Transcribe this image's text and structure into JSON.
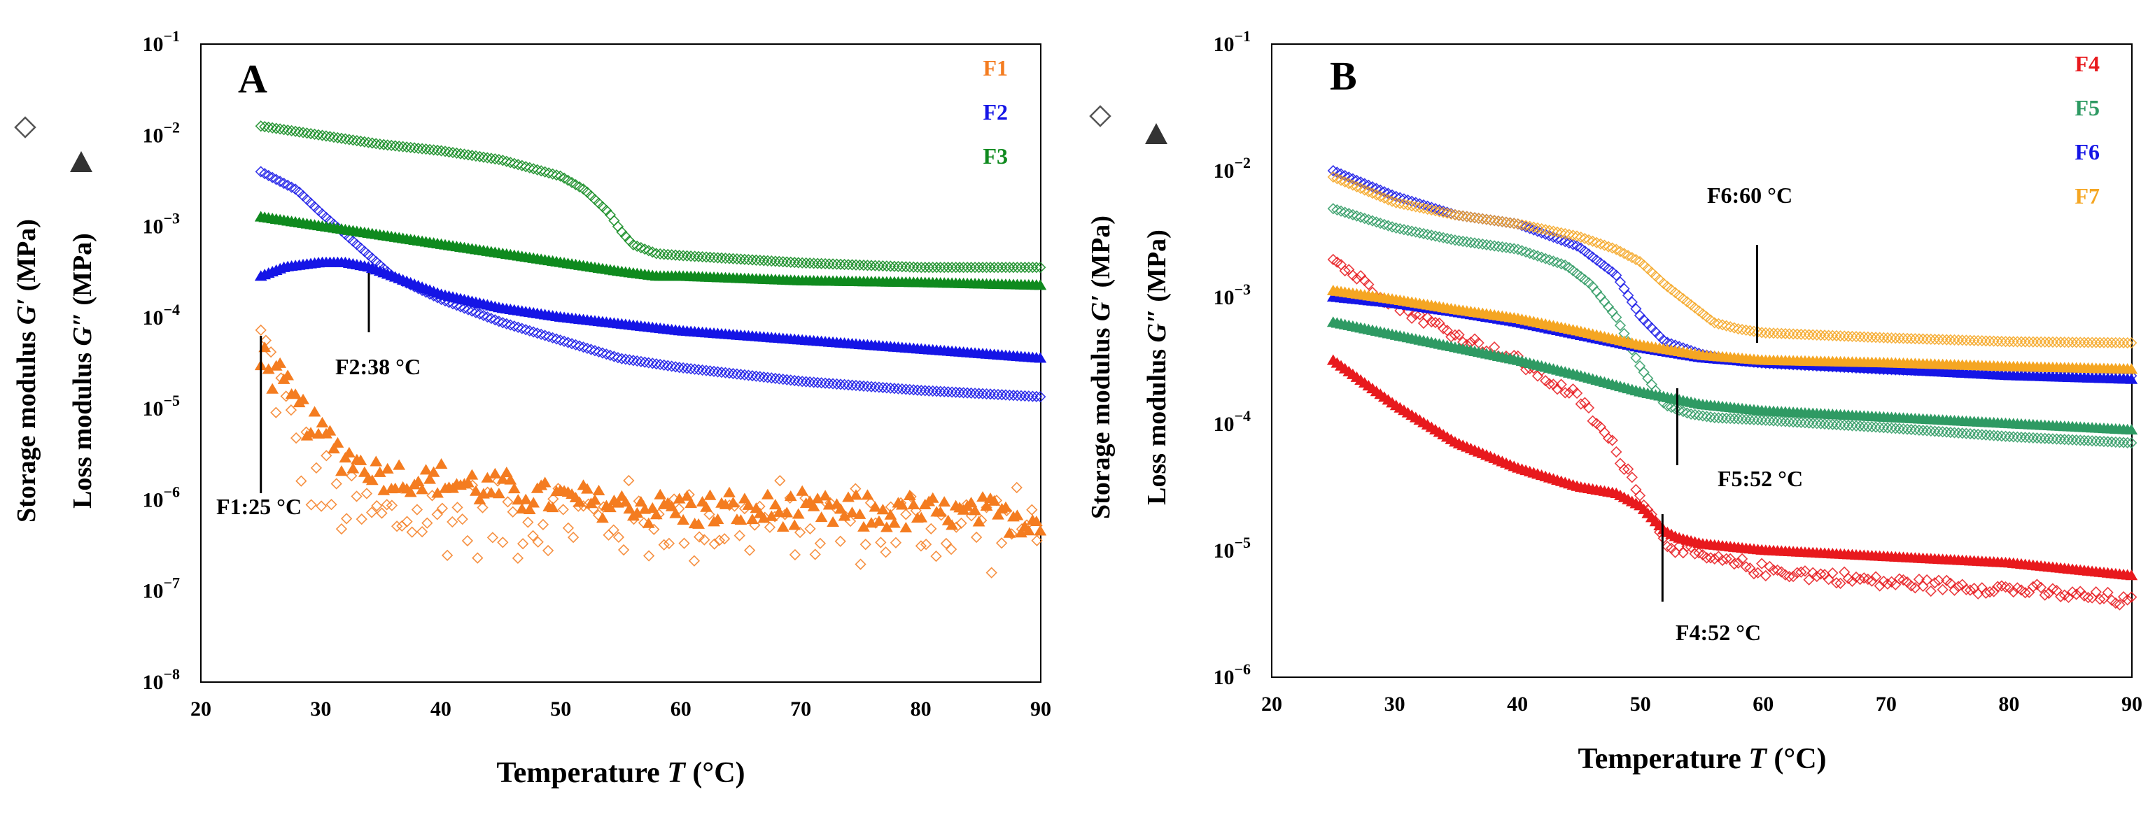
{
  "chart_data": [
    {
      "type": "scatter",
      "panel_label": "A",
      "xlabel": "Temperature",
      "xlabel_symbol": "T",
      "xlabel_unit": "(°C)",
      "ylabel_storage": "Storage modulus",
      "ylabel_storage_symbol": "G′",
      "ylabel_loss": "Loss modulus",
      "ylabel_loss_symbol": "G″",
      "ylabel_unit": "(MPa)",
      "xlim": [
        20,
        90
      ],
      "ylim_exp": [
        -8,
        -1
      ],
      "x_ticks": [
        20,
        30,
        40,
        50,
        60,
        70,
        80,
        90
      ],
      "y_ticks_exp": [
        -8,
        -7,
        -6,
        -5,
        -4,
        -3,
        -2,
        -1
      ],
      "legend": [
        {
          "name": "F1",
          "color": "#f47c20"
        },
        {
          "name": "F2",
          "color": "#1515e6"
        },
        {
          "name": "F3",
          "color": "#0f8a1e"
        }
      ],
      "series": [
        {
          "name": "F1",
          "modulus": "storage",
          "marker": "diamond",
          "color": "#f47c20",
          "noise": 0.55,
          "x": [
            25,
            26,
            27,
            28,
            29,
            30,
            32,
            35,
            40,
            50,
            60,
            70,
            80,
            90
          ],
          "log10_y": [
            -4.25,
            -4.6,
            -5.0,
            -5.4,
            -5.7,
            -5.9,
            -6.1,
            -6.2,
            -6.2,
            -6.2,
            -6.25,
            -6.25,
            -6.3,
            -6.3
          ]
        },
        {
          "name": "F1",
          "modulus": "loss",
          "marker": "triangle",
          "color": "#f47c20",
          "noise": 0.25,
          "x": [
            25,
            27,
            30,
            33,
            36,
            40,
            45,
            50,
            60,
            70,
            80,
            90
          ],
          "log10_y": [
            -4.4,
            -4.8,
            -5.3,
            -5.6,
            -5.75,
            -5.8,
            -5.9,
            -6.0,
            -6.1,
            -6.15,
            -6.15,
            -6.2
          ]
        },
        {
          "name": "F2",
          "modulus": "storage",
          "marker": "diamond",
          "color": "#1515e6",
          "noise": 0,
          "x": [
            25,
            28,
            30,
            33,
            36,
            40,
            45,
            50,
            55,
            60,
            70,
            80,
            90
          ],
          "log10_y": [
            -2.4,
            -2.6,
            -2.85,
            -3.2,
            -3.55,
            -3.8,
            -4.05,
            -4.25,
            -4.45,
            -4.55,
            -4.7,
            -4.8,
            -4.87
          ]
        },
        {
          "name": "F2",
          "modulus": "loss",
          "marker": "triangle",
          "color": "#1515e6",
          "noise": 0,
          "x": [
            25,
            27,
            30,
            32,
            34,
            37,
            40,
            45,
            50,
            60,
            70,
            80,
            90
          ],
          "log10_y": [
            -3.55,
            -3.45,
            -3.4,
            -3.4,
            -3.45,
            -3.6,
            -3.75,
            -3.9,
            -4.0,
            -4.15,
            -4.25,
            -4.35,
            -4.45
          ]
        },
        {
          "name": "F3",
          "modulus": "storage",
          "marker": "diamond",
          "color": "#0f8a1e",
          "noise": 0,
          "x": [
            25,
            30,
            35,
            40,
            45,
            50,
            52,
            54,
            55,
            56,
            58,
            60,
            70,
            80,
            90
          ],
          "log10_y": [
            -1.9,
            -2.0,
            -2.1,
            -2.17,
            -2.27,
            -2.45,
            -2.6,
            -2.85,
            -3.05,
            -3.2,
            -3.3,
            -3.32,
            -3.4,
            -3.45,
            -3.45
          ]
        },
        {
          "name": "F3",
          "modulus": "loss",
          "marker": "triangle",
          "color": "#0f8a1e",
          "noise": 0,
          "x": [
            25,
            30,
            35,
            40,
            45,
            50,
            55,
            58,
            60,
            70,
            80,
            90
          ],
          "log10_y": [
            -2.9,
            -3.0,
            -3.1,
            -3.2,
            -3.3,
            -3.4,
            -3.5,
            -3.55,
            -3.55,
            -3.6,
            -3.62,
            -3.65
          ]
        }
      ],
      "annotations": [
        {
          "label": "F2:38 °C",
          "x": 34
        },
        {
          "label": "F1:25 °C",
          "x": 25
        }
      ]
    },
    {
      "type": "scatter",
      "panel_label": "B",
      "xlabel": "Temperature",
      "xlabel_symbol": "T",
      "xlabel_unit": "(°C)",
      "ylabel_storage": "Storage modulus",
      "ylabel_storage_symbol": "G′",
      "ylabel_loss": "Loss modulus",
      "ylabel_loss_symbol": "G″",
      "ylabel_unit": "(MPa)",
      "xlim": [
        20,
        90
      ],
      "ylim_exp": [
        -6,
        -1
      ],
      "x_ticks": [
        20,
        30,
        40,
        50,
        60,
        70,
        80,
        90
      ],
      "y_ticks_exp": [
        -6,
        -5,
        -4,
        -3,
        -2,
        -1
      ],
      "legend": [
        {
          "name": "F4",
          "color": "#e8191d"
        },
        {
          "name": "F5",
          "color": "#2e9a63"
        },
        {
          "name": "F6",
          "color": "#1515e6"
        },
        {
          "name": "F7",
          "color": "#f5a623"
        }
      ],
      "series": [
        {
          "name": "F4",
          "modulus": "storage",
          "marker": "diamond",
          "color": "#e8191d",
          "noise": 0.06,
          "x": [
            25,
            30,
            35,
            40,
            45,
            48,
            50,
            51,
            52,
            53,
            55,
            60,
            70,
            80,
            90
          ],
          "log10_y": [
            -2.7,
            -3.05,
            -3.3,
            -3.5,
            -3.8,
            -4.2,
            -4.55,
            -4.75,
            -4.9,
            -5.0,
            -5.05,
            -5.15,
            -5.25,
            -5.3,
            -5.4
          ]
        },
        {
          "name": "F4",
          "modulus": "loss",
          "marker": "triangle",
          "color": "#e8191d",
          "noise": 0,
          "x": [
            25,
            30,
            35,
            40,
            45,
            48,
            50,
            51,
            52,
            53,
            55,
            60,
            70,
            80,
            90
          ],
          "log10_y": [
            -3.5,
            -3.85,
            -4.15,
            -4.35,
            -4.5,
            -4.55,
            -4.65,
            -4.75,
            -4.85,
            -4.9,
            -4.95,
            -5.0,
            -5.05,
            -5.1,
            -5.2
          ]
        },
        {
          "name": "F5",
          "modulus": "storage",
          "marker": "diamond",
          "color": "#2e9a63",
          "noise": 0,
          "x": [
            25,
            30,
            35,
            40,
            44,
            46,
            48,
            50,
            52,
            54,
            56,
            60,
            70,
            80,
            90
          ],
          "log10_y": [
            -2.3,
            -2.45,
            -2.55,
            -2.62,
            -2.75,
            -2.9,
            -3.15,
            -3.55,
            -3.85,
            -3.92,
            -3.95,
            -3.97,
            -4.03,
            -4.1,
            -4.15
          ]
        },
        {
          "name": "F5",
          "modulus": "loss",
          "marker": "triangle",
          "color": "#2e9a63",
          "noise": 0,
          "x": [
            25,
            30,
            35,
            40,
            45,
            50,
            55,
            60,
            70,
            80,
            90
          ],
          "log10_y": [
            -3.2,
            -3.3,
            -3.4,
            -3.5,
            -3.62,
            -3.75,
            -3.85,
            -3.9,
            -3.95,
            -4.0,
            -4.05
          ]
        },
        {
          "name": "F6",
          "modulus": "storage",
          "marker": "diamond",
          "color": "#1515e6",
          "noise": 0,
          "x": [
            25,
            30,
            35,
            40,
            45,
            48,
            50,
            52,
            55,
            58,
            60,
            70,
            80,
            90
          ],
          "log10_y": [
            -2.0,
            -2.2,
            -2.35,
            -2.42,
            -2.6,
            -2.82,
            -3.15,
            -3.35,
            -3.45,
            -3.5,
            -3.52,
            -3.57,
            -3.6,
            -3.62
          ]
        },
        {
          "name": "F6",
          "modulus": "loss",
          "marker": "triangle",
          "color": "#1515e6",
          "noise": 0,
          "x": [
            25,
            30,
            35,
            40,
            45,
            50,
            55,
            60,
            70,
            80,
            90
          ],
          "log10_y": [
            -3.0,
            -3.05,
            -3.12,
            -3.2,
            -3.3,
            -3.4,
            -3.48,
            -3.52,
            -3.57,
            -3.62,
            -3.65
          ]
        },
        {
          "name": "F7",
          "modulus": "storage",
          "marker": "diamond",
          "color": "#f5a623",
          "noise": 0,
          "x": [
            25,
            30,
            35,
            40,
            45,
            48,
            50,
            52,
            54,
            56,
            58,
            60,
            70,
            80,
            90
          ],
          "log10_y": [
            -2.05,
            -2.25,
            -2.35,
            -2.42,
            -2.52,
            -2.62,
            -2.72,
            -2.9,
            -3.05,
            -3.2,
            -3.25,
            -3.28,
            -3.32,
            -3.35,
            -3.36
          ]
        },
        {
          "name": "F7",
          "modulus": "loss",
          "marker": "triangle",
          "color": "#f5a623",
          "noise": 0,
          "x": [
            25,
            30,
            35,
            40,
            45,
            50,
            55,
            60,
            70,
            80,
            90
          ],
          "log10_y": [
            -2.95,
            -3.02,
            -3.1,
            -3.17,
            -3.27,
            -3.38,
            -3.46,
            -3.5,
            -3.52,
            -3.55,
            -3.57
          ]
        }
      ],
      "annotations": [
        {
          "label": "F6:60 °C",
          "x": 59.5
        },
        {
          "label": "F5:52 °C",
          "x": 53
        },
        {
          "label": "F4:52 °C",
          "x": 51.8
        }
      ]
    }
  ]
}
